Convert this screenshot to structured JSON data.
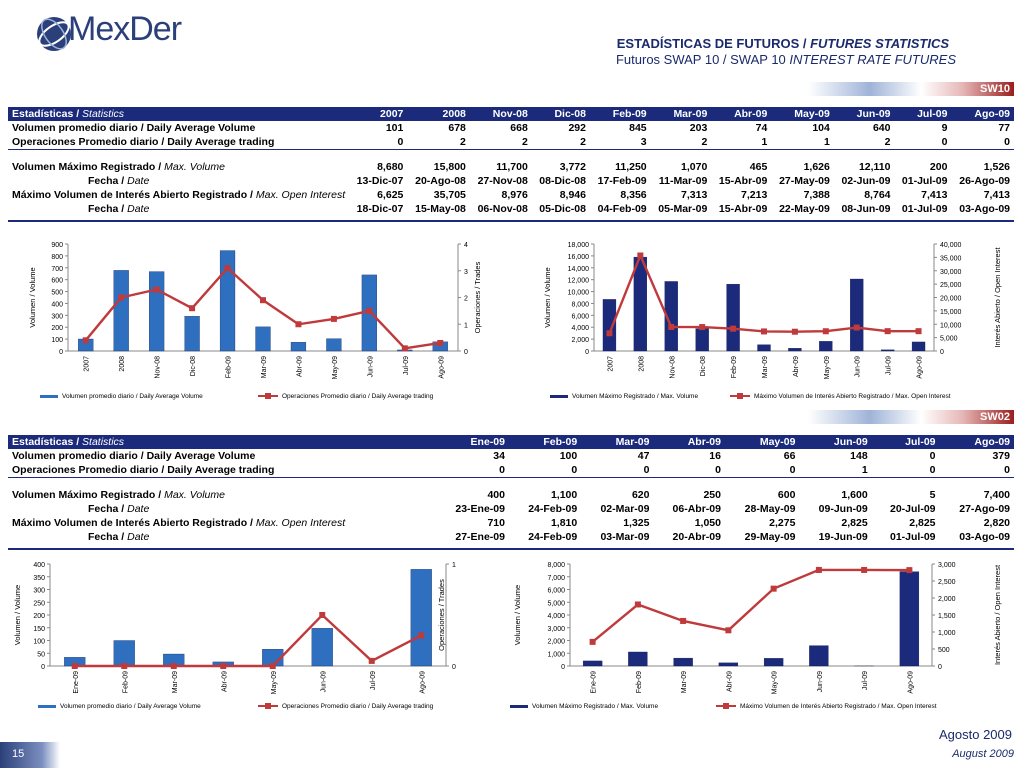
{
  "header": {
    "logo_text": "MexDer",
    "title_es": "ESTADÍSTICAS DE FUTUROS",
    "title_sep": " / ",
    "title_en": "FUTURES STATISTICS",
    "subtitle_es": "Futuros SWAP 10 / SWAP 10 ",
    "subtitle_en": "INTEREST RATE FUTURES"
  },
  "section1": {
    "code": "SW10",
    "header_label_es": "Estadísticas / ",
    "header_label_en": "Statistics",
    "columns": [
      "2007",
      "2008",
      "Nov-08",
      "Dic-08",
      "Feb-09",
      "Mar-09",
      "Abr-09",
      "May-09",
      "Jun-09",
      "Jul-09",
      "Ago-09"
    ],
    "rows": [
      {
        "label_es": "Volumen promedio diario / Daily Average Volume",
        "label_en": "",
        "values": [
          "101",
          "678",
          "668",
          "292",
          "845",
          "203",
          "74",
          "104",
          "640",
          "9",
          "77"
        ]
      },
      {
        "label_es": "Operaciones Promedio diario / Daily Average trading",
        "label_en": "",
        "values": [
          "0",
          "2",
          "2",
          "2",
          "3",
          "2",
          "1",
          "1",
          "2",
          "0",
          "0"
        ]
      },
      {
        "label_es": "Volumen Máximo Registrado / ",
        "label_en": "Max. Volume",
        "values": [
          "8,680",
          "15,800",
          "11,700",
          "3,772",
          "11,250",
          "1,070",
          "465",
          "1,626",
          "12,110",
          "200",
          "1,526"
        ]
      },
      {
        "label_es": "Fecha / ",
        "label_en": "Date",
        "values": [
          "13-Dic-07",
          "20-Ago-08",
          "27-Nov-08",
          "08-Dic-08",
          "17-Feb-09",
          "11-Mar-09",
          "15-Abr-09",
          "27-May-09",
          "02-Jun-09",
          "01-Jul-09",
          "26-Ago-09"
        ]
      },
      {
        "label_es": "Máximo Volumen de Interés Abierto Registrado / ",
        "label_en": "Max. Open Interest",
        "values": [
          "6,625",
          "35,705",
          "8,976",
          "8,946",
          "8,356",
          "7,313",
          "7,213",
          "7,388",
          "8,764",
          "7,413",
          "7,413"
        ]
      },
      {
        "label_es": "Fecha / ",
        "label_en": "Date",
        "values": [
          "18-Dic-07",
          "15-May-08",
          "06-Nov-08",
          "05-Dic-08",
          "04-Feb-09",
          "05-Mar-09",
          "15-Abr-09",
          "22-May-09",
          "08-Jun-09",
          "01-Jul-09",
          "03-Ago-09"
        ]
      }
    ]
  },
  "section2": {
    "code": "SW02",
    "header_label_es": "Estadísticas / ",
    "header_label_en": "Statistics",
    "columns": [
      "Ene-09",
      "Feb-09",
      "Mar-09",
      "Abr-09",
      "May-09",
      "Jun-09",
      "Jul-09",
      "Ago-09"
    ],
    "rows": [
      {
        "label_es": "Volumen promedio diario / Daily Average Volume",
        "label_en": "",
        "values": [
          "34",
          "100",
          "47",
          "16",
          "66",
          "148",
          "0",
          "379"
        ]
      },
      {
        "label_es": "Operaciones Promedio diario / Daily Average trading",
        "label_en": "",
        "values": [
          "0",
          "0",
          "0",
          "0",
          "0",
          "1",
          "0",
          "0"
        ]
      },
      {
        "label_es": "Volumen Máximo Registrado / ",
        "label_en": "Max. Volume",
        "values": [
          "400",
          "1,100",
          "620",
          "250",
          "600",
          "1,600",
          "5",
          "7,400"
        ]
      },
      {
        "label_es": "Fecha / ",
        "label_en": "Date",
        "values": [
          "23-Ene-09",
          "24-Feb-09",
          "02-Mar-09",
          "06-Abr-09",
          "28-May-09",
          "09-Jun-09",
          "20-Jul-09",
          "27-Ago-09"
        ]
      },
      {
        "label_es": "Máximo Volumen de Interés Abierto Registrado / ",
        "label_en": "Max. Open Interest",
        "values": [
          "710",
          "1,810",
          "1,325",
          "1,050",
          "2,275",
          "2,825",
          "2,825",
          "2,820"
        ]
      },
      {
        "label_es": "Fecha / ",
        "label_en": "Date",
        "values": [
          "27-Ene-09",
          "24-Feb-09",
          "03-Mar-09",
          "20-Abr-09",
          "29-May-09",
          "19-Jun-09",
          "01-Jul-09",
          "03-Ago-09"
        ]
      }
    ]
  },
  "chart_data": [
    {
      "type": "bar",
      "categories": [
        "2007",
        "2008",
        "Nov-08",
        "Dic-08",
        "Feb-09",
        "Mar-09",
        "Abr-09",
        "May-09",
        "Jun-09",
        "Jul-09",
        "Ago-09"
      ],
      "series": [
        {
          "name": "Volumen promedio diario / Daily Average Volume",
          "kind": "bar",
          "axis": "left",
          "values": [
            101,
            678,
            668,
            292,
            845,
            203,
            74,
            104,
            640,
            9,
            77
          ]
        },
        {
          "name": "Operaciones Promedio diario / Daily Average trading",
          "kind": "line",
          "axis": "right",
          "values": [
            0.4,
            2,
            2.3,
            1.6,
            3.1,
            1.9,
            1,
            1.2,
            1.5,
            0.1,
            0.3
          ]
        }
      ],
      "ylabel": "Volumen / Volume",
      "y2label": "Operaciones / Trades",
      "ylim": [
        0,
        900
      ],
      "yticks": [
        "0",
        "100",
        "200",
        "300",
        "400",
        "500",
        "600",
        "700",
        "800",
        "900"
      ],
      "y2lim": [
        0,
        4
      ],
      "y2ticks": [
        "0",
        "1",
        "2",
        "3",
        "4"
      ],
      "bar_color": "#2f6fbf"
    },
    {
      "type": "bar",
      "categories": [
        "2007",
        "2008",
        "Nov-08",
        "Dic-08",
        "Feb-09",
        "Mar-09",
        "Abr-09",
        "May-09",
        "Jun-09",
        "Jul-09",
        "Ago-09"
      ],
      "series": [
        {
          "name": "Volumen Máximo Registrado / Max. Volume",
          "kind": "bar",
          "axis": "left",
          "values": [
            8680,
            15800,
            11700,
            3772,
            11250,
            1070,
            465,
            1626,
            12110,
            200,
            1526
          ]
        },
        {
          "name": "Máximo Volumen de Interés Abierto Registrado / Max. Open Interest",
          "kind": "line",
          "axis": "right",
          "values": [
            6625,
            35705,
            8976,
            8946,
            8356,
            7313,
            7213,
            7388,
            8764,
            7413,
            7413
          ]
        }
      ],
      "ylabel": "Volumen / Volume",
      "y2label": "Interés Abierto / Open Interest",
      "ylim": [
        0,
        18000
      ],
      "yticks": [
        "0",
        "2,000",
        "4,000",
        "6,000",
        "8,000",
        "10,000",
        "12,000",
        "14,000",
        "16,000",
        "18,000"
      ],
      "y2lim": [
        0,
        40000
      ],
      "y2ticks": [
        "0",
        "5,000",
        "10,000",
        "15,000",
        "20,000",
        "25,000",
        "30,000",
        "35,000",
        "40,000"
      ],
      "bar_color": "#1b2a7a"
    },
    {
      "type": "bar",
      "categories": [
        "Ene-09",
        "Feb-09",
        "Mar-09",
        "Abr-09",
        "May-09",
        "Jun-09",
        "Jul-09",
        "Ago-09"
      ],
      "series": [
        {
          "name": "Volumen promedio diario / Daily Average Volume",
          "kind": "bar",
          "axis": "left",
          "values": [
            34,
            100,
            47,
            16,
            66,
            148,
            0,
            379
          ]
        },
        {
          "name": "Operaciones Promedio diario / Daily Average trading",
          "kind": "line",
          "axis": "right",
          "values": [
            0,
            0,
            0,
            0,
            0,
            0.5,
            0.05,
            0.3
          ]
        }
      ],
      "ylabel": "Volumen / Volume",
      "y2label": "Operaciones / Trades",
      "ylim": [
        0,
        400
      ],
      "yticks": [
        "0",
        "50",
        "100",
        "150",
        "200",
        "250",
        "300",
        "350",
        "400"
      ],
      "y2lim": [
        0,
        1
      ],
      "y2ticks": [
        "0",
        "1"
      ],
      "bar_color": "#2f6fbf"
    },
    {
      "type": "bar",
      "categories": [
        "Ene-09",
        "Feb-09",
        "Mar-09",
        "Abr-09",
        "May-09",
        "Jun-09",
        "Jul-09",
        "Ago-09"
      ],
      "series": [
        {
          "name": "Volumen Máximo Registrado / Max. Volume",
          "kind": "bar",
          "axis": "left",
          "values": [
            400,
            1100,
            620,
            250,
            600,
            1600,
            5,
            7400
          ]
        },
        {
          "name": "Máximo Volumen de Interés Abierto Registrado / Max. Open Interest",
          "kind": "line",
          "axis": "right",
          "values": [
            710,
            1810,
            1325,
            1050,
            2275,
            2825,
            2825,
            2820
          ]
        }
      ],
      "ylabel": "Volumen / Volume",
      "y2label": "Interés Abierto / Open Interest",
      "ylim": [
        0,
        8000
      ],
      "yticks": [
        "0",
        "1,000",
        "2,000",
        "3,000",
        "4,000",
        "5,000",
        "6,000",
        "7,000",
        "8,000"
      ],
      "y2lim": [
        0,
        3000
      ],
      "y2ticks": [
        "0",
        "500",
        "1,000",
        "1,500",
        "2,000",
        "2,500",
        "3,000"
      ],
      "bar_color": "#1b2a7a"
    }
  ],
  "legends": [
    {
      "bar": "Volumen promedio diario / Daily Average Volume",
      "line": "Operaciones Promedio diario / Daily Average trading"
    },
    {
      "bar": "Volumen Máximo Registrado / Max. Volume",
      "line": "Máximo Volumen de Interés Abierto Registrado / Max. Open Interest"
    },
    {
      "bar": "Volumen promedio diario / Daily Average Volume",
      "line": "Operaciones Promedio diario / Daily Average trading"
    },
    {
      "bar": "Volumen Máximo Registrado / Max. Volume",
      "line": "Máximo Volumen de Interés Abierto Registrado / Max. Open Interest"
    }
  ],
  "footer": {
    "page_number": "15",
    "date_es": "Agosto 2009",
    "date_en": "August 2009"
  },
  "colors": {
    "navy": "#1b2a7a",
    "line_red": "#c0393b",
    "accent_red": "#9a1e1e"
  }
}
